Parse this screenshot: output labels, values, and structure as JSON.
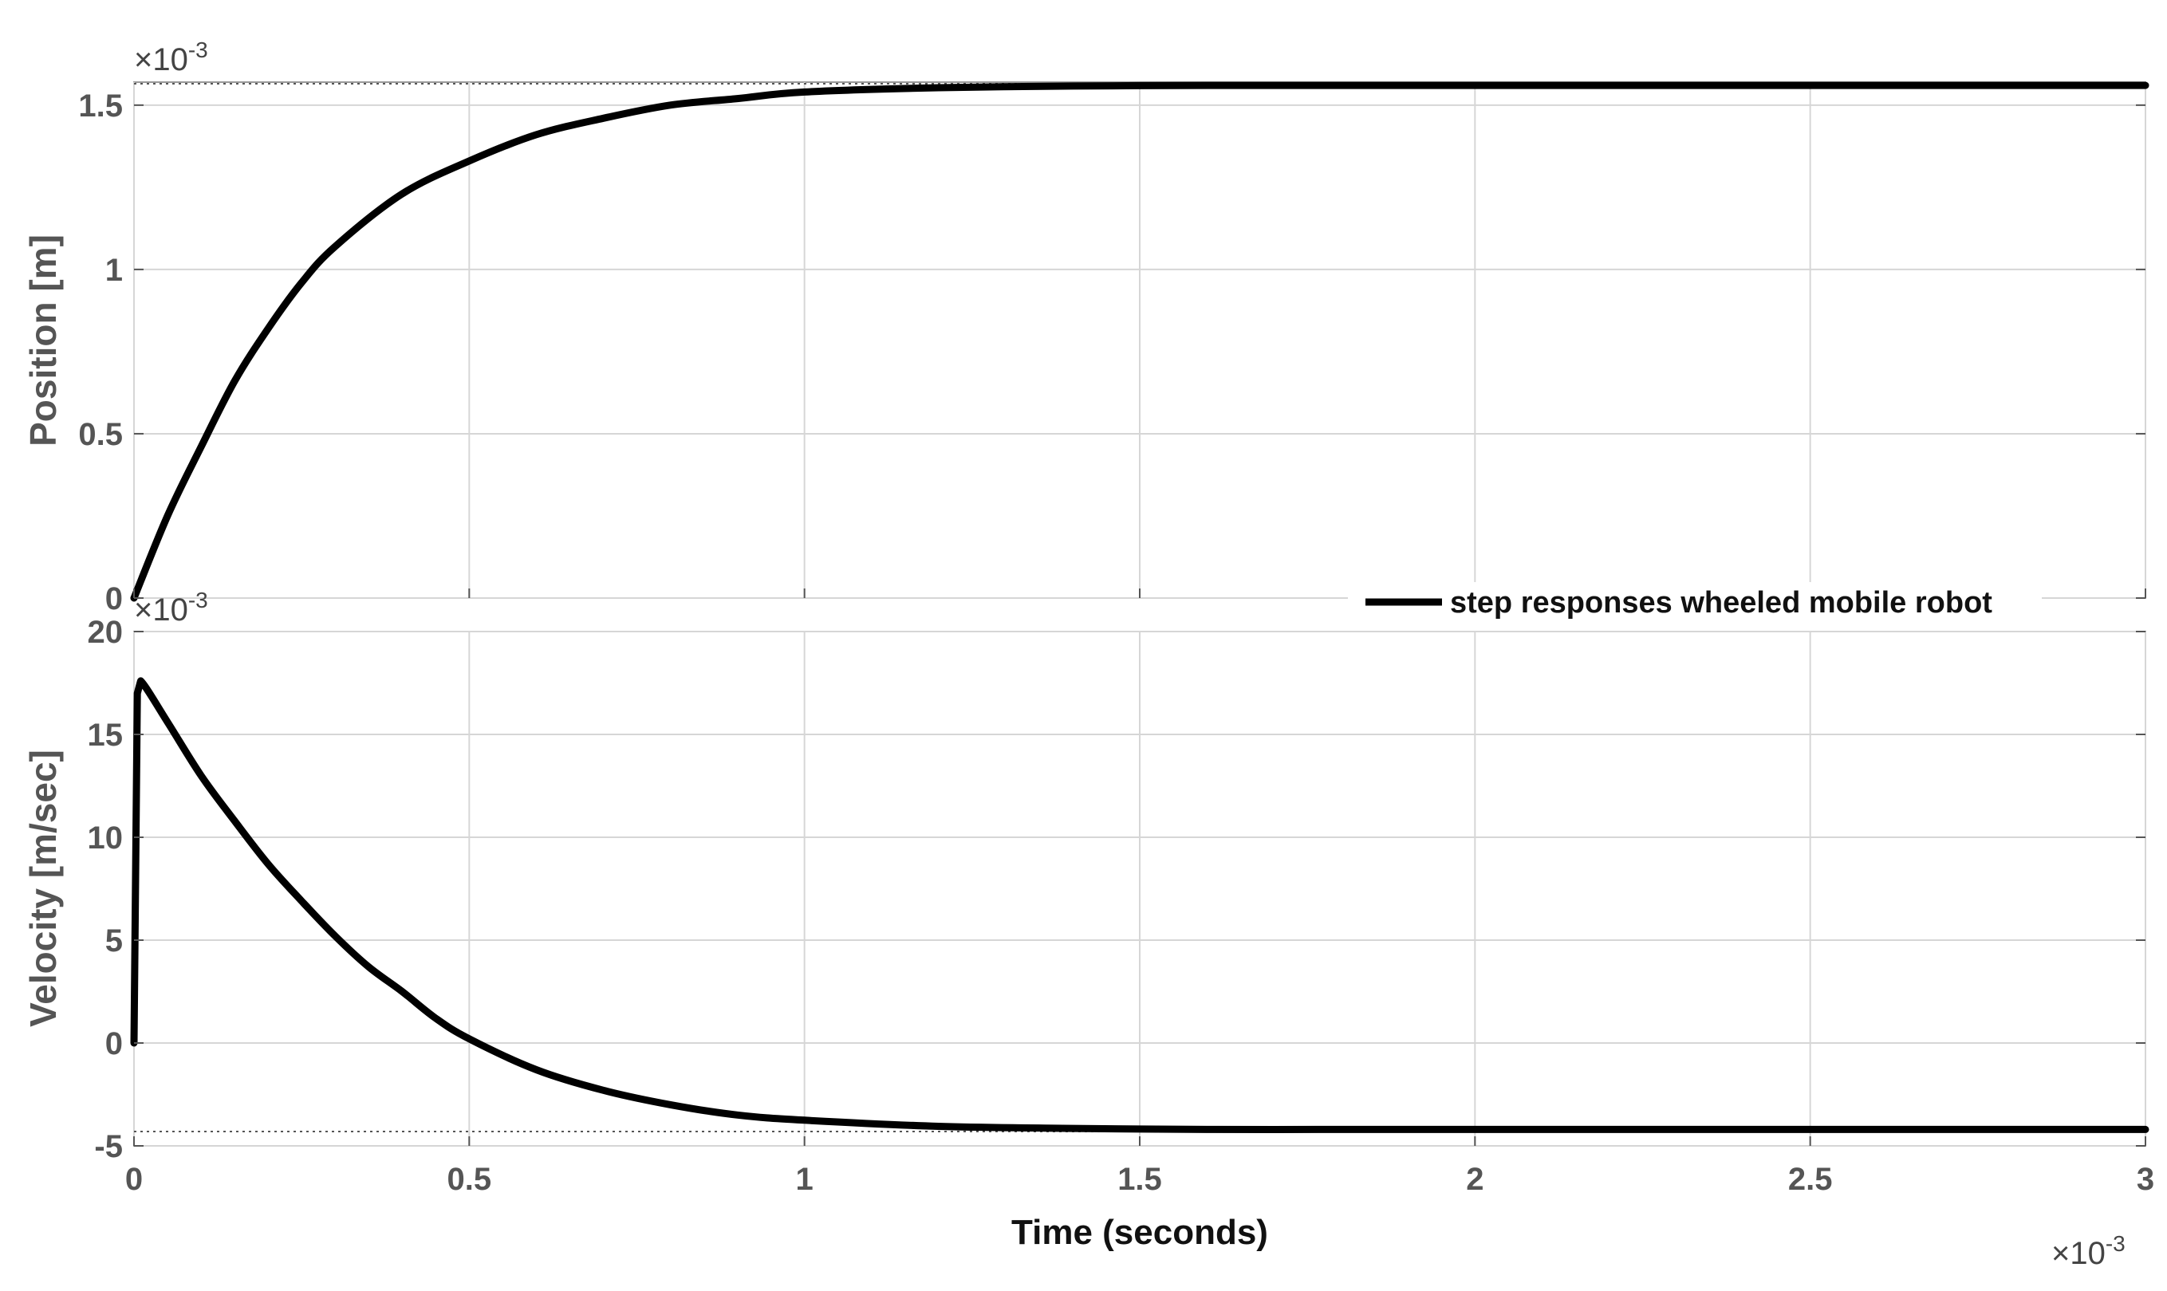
{
  "chart_data": [
    {
      "type": "line",
      "id": "position",
      "ylabel": "Position [m]",
      "y_exponent_label": "×10",
      "y_exponent_power": "-3",
      "y_scale": 0.001,
      "xlim": [
        0,
        3
      ],
      "ylim": [
        0,
        1.57
      ],
      "yticks": [
        0,
        0.5,
        1,
        1.5
      ],
      "ytick_labels": [
        "0",
        "0.5",
        "1",
        "1.5"
      ],
      "xticks": [
        0,
        0.5,
        1,
        1.5,
        2,
        2.5,
        3
      ],
      "grid": true,
      "series": [
        {
          "x": [
            0,
            0.05,
            0.1,
            0.15,
            0.2,
            0.25,
            0.3,
            0.4,
            0.5,
            0.6,
            0.7,
            0.8,
            0.9,
            1.0,
            1.2,
            1.4,
            1.6,
            1.8,
            2.0,
            2.5,
            3.0
          ],
          "values": [
            0,
            0.25,
            0.46,
            0.66,
            0.82,
            0.96,
            1.07,
            1.23,
            1.33,
            1.41,
            1.46,
            1.5,
            1.52,
            1.54,
            1.553,
            1.558,
            1.56,
            1.56,
            1.56,
            1.56,
            1.56
          ]
        }
      ],
      "reference_level": 1.565
    },
    {
      "type": "line",
      "id": "velocity",
      "ylabel": "Velocity [m/sec]",
      "y_exponent_label": "×10",
      "y_exponent_power": "-3",
      "y_scale": 0.001,
      "xlim": [
        0,
        3
      ],
      "ylim": [
        -5,
        20
      ],
      "yticks": [
        -5,
        0,
        5,
        10,
        15,
        20
      ],
      "ytick_labels": [
        "-5",
        "0",
        "5",
        "10",
        "15",
        "20"
      ],
      "xticks": [
        0,
        0.5,
        1,
        1.5,
        2,
        2.5,
        3
      ],
      "xtick_labels": [
        "0",
        "0.5",
        "1",
        "1.5",
        "2",
        "2.5",
        "3"
      ],
      "xlabel": "Time (seconds)",
      "x_exponent_label": "×10",
      "x_exponent_power": "-3",
      "x_scale": 0.001,
      "grid": true,
      "series": [
        {
          "name": "step responses wheeled mobile robot",
          "x": [
            0,
            0.005,
            0.01,
            0.05,
            0.1,
            0.15,
            0.2,
            0.25,
            0.3,
            0.35,
            0.4,
            0.45,
            0.5,
            0.6,
            0.7,
            0.8,
            0.9,
            1.0,
            1.2,
            1.4,
            1.6,
            1.8,
            2.0,
            2.5,
            3.0
          ],
          "values": [
            0,
            17.0,
            17.6,
            15.6,
            13.0,
            10.8,
            8.7,
            6.9,
            5.2,
            3.7,
            2.5,
            1.2,
            0.2,
            -1.3,
            -2.3,
            -3.0,
            -3.5,
            -3.75,
            -4.05,
            -4.15,
            -4.2,
            -4.2,
            -4.2,
            -4.2,
            -4.2
          ]
        }
      ],
      "reference_level": -4.3
    }
  ],
  "legend": {
    "label": "step responses wheeled mobile robot",
    "placement": "top-right of lower panel"
  },
  "colors": {
    "series": "#000000",
    "grid": "#d6d6d6",
    "frame": "#9a9a9a",
    "text": "#555555"
  }
}
